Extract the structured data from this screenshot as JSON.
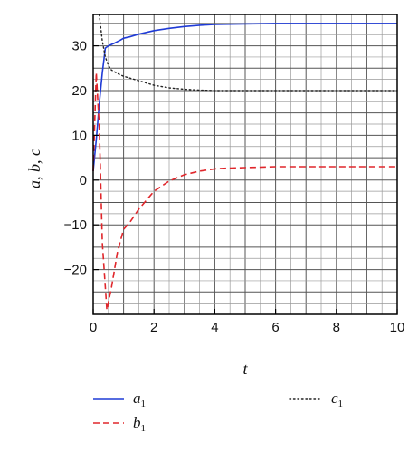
{
  "chart_data": {
    "type": "line",
    "xlabel": "t",
    "ylabel": "a, b, c",
    "xlim": [
      0,
      10
    ],
    "ylim": [
      -30,
      37
    ],
    "xticks": [
      0,
      2,
      4,
      6,
      8,
      10
    ],
    "yticks": [
      -20,
      -10,
      0,
      10,
      20,
      30
    ],
    "x_tick_labels": [
      "0",
      "2",
      "4",
      "6",
      "8",
      "10"
    ],
    "y_tick_labels": [
      "−20",
      "−10",
      "0",
      "10",
      "20",
      "30"
    ],
    "grid": true,
    "legend_position": "bottom",
    "series": [
      {
        "name": "a",
        "subscript": "1",
        "color": "#1f3bd6",
        "style": "solid",
        "x": [
          0,
          0.1,
          0.2,
          0.3,
          0.4,
          0.5,
          0.7,
          0.9,
          1.0,
          1.2,
          1.5,
          2.0,
          2.5,
          3.0,
          3.5,
          4.0,
          5.0,
          6.0,
          7.0,
          8.0,
          9.0,
          10.0
        ],
        "y": [
          2,
          9,
          17,
          24,
          29.5,
          30,
          30.6,
          31.3,
          31.7,
          32,
          32.6,
          33.4,
          33.9,
          34.3,
          34.6,
          34.8,
          34.9,
          35,
          35,
          35,
          35,
          35
        ]
      },
      {
        "name": "b",
        "subscript": "1",
        "color": "#e0262b",
        "style": "dashed",
        "x": [
          0,
          0.1,
          0.2,
          0.3,
          0.45,
          0.6,
          0.8,
          1.0,
          1.2,
          1.5,
          2.0,
          2.5,
          3.0,
          3.5,
          4.0,
          4.5,
          5.0,
          6.0,
          7.0,
          8.0,
          9.0,
          10.0
        ],
        "y": [
          2,
          24,
          12,
          -14,
          -29,
          -24,
          -16,
          -11,
          -9.5,
          -6.5,
          -2.5,
          -0.2,
          1.2,
          2.0,
          2.5,
          2.7,
          2.8,
          3,
          3,
          3,
          3,
          3
        ]
      },
      {
        "name": "c",
        "subscript": "1",
        "color": "#222222",
        "style": "dotted",
        "x": [
          0.2,
          0.3,
          0.4,
          0.5,
          0.6,
          0.8,
          1.0,
          1.3,
          1.6,
          2.0,
          2.5,
          3.0,
          3.5,
          4.0,
          5.0,
          6.0,
          7.0,
          8.0,
          9.0,
          10.0
        ],
        "y": [
          37,
          31,
          27.5,
          25.6,
          24.6,
          23.8,
          23.2,
          22.6,
          22,
          21.2,
          20.6,
          20.3,
          20.1,
          20,
          20,
          20,
          20,
          20,
          20,
          20
        ]
      }
    ]
  }
}
